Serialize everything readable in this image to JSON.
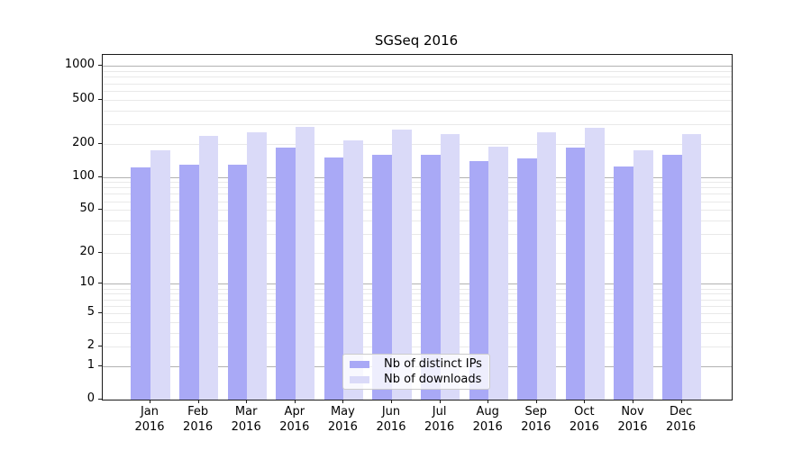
{
  "title": "SGSeq 2016",
  "legend": {
    "items": [
      {
        "label": "Nb of distinct IPs"
      },
      {
        "label": "Nb of downloads"
      }
    ]
  },
  "colors": {
    "distinct_ips_bar": "#a9a9f6",
    "downloads_bar": "#dadaf8",
    "major_gridline": "#b2b2b2",
    "minor_gridline": "#e9e9e9",
    "axis": "#1a1a1a"
  },
  "chart_data": {
    "type": "bar",
    "title": "SGSeq 2016",
    "xlabel": "",
    "ylabel": "",
    "y_scale": "log1p",
    "ylim": [
      0,
      1276
    ],
    "grid": true,
    "legend_position": "lower center",
    "categories": [
      "Jan",
      "Feb",
      "Mar",
      "Apr",
      "May",
      "Jun",
      "Jul",
      "Aug",
      "Sep",
      "Oct",
      "Nov",
      "Dec"
    ],
    "category_year": "2016",
    "y_ticks": [
      0,
      1,
      2,
      5,
      10,
      20,
      50,
      100,
      200,
      500,
      1000
    ],
    "series": [
      {
        "name": "Nb of distinct IPs",
        "color": "#a9a9f6",
        "values": [
          121,
          128,
          130,
          184,
          151,
          159,
          158,
          138,
          148,
          184,
          124,
          160
        ]
      },
      {
        "name": "Nb of downloads",
        "color": "#dadaf8",
        "values": [
          175,
          237,
          254,
          281,
          215,
          268,
          242,
          186,
          254,
          279,
          175,
          242
        ]
      }
    ]
  }
}
